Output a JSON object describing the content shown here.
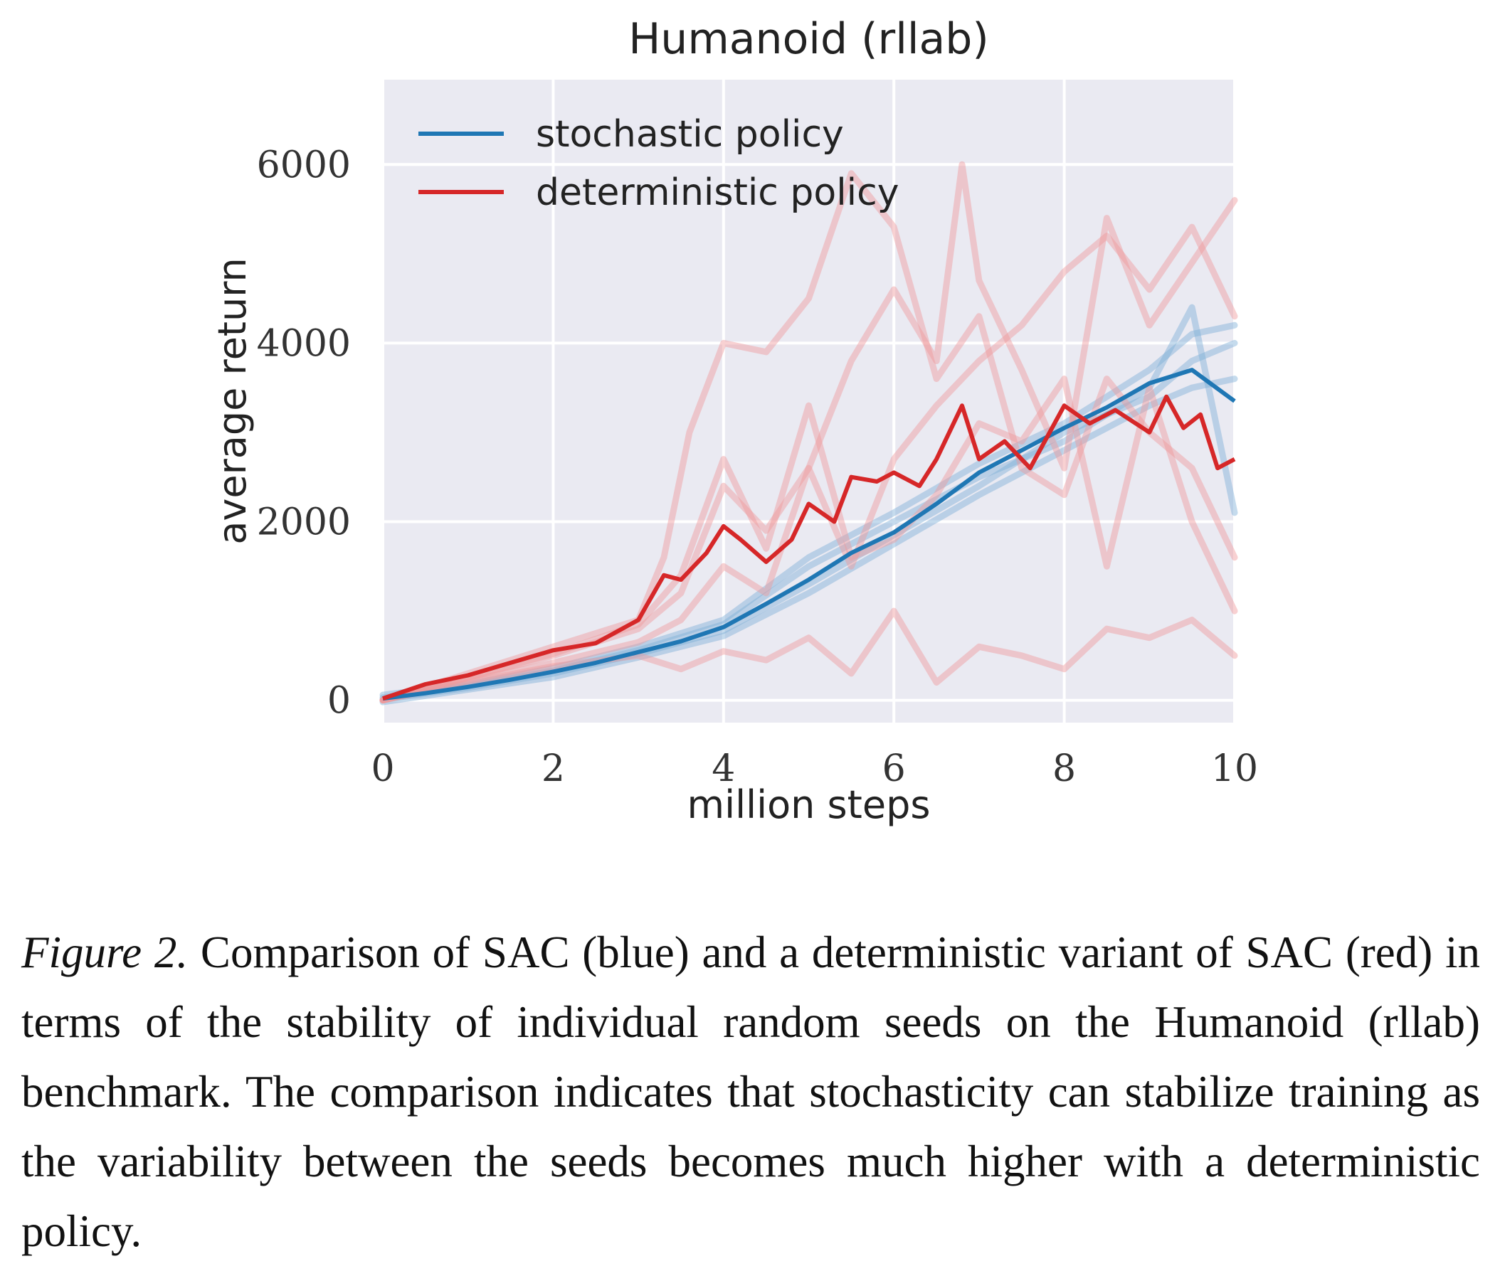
{
  "chart_data": {
    "type": "line",
    "title": "Humanoid (rllab)",
    "xlabel": "million steps",
    "ylabel": "average return",
    "xlim": [
      0,
      10
    ],
    "ylim": [
      -250,
      6950
    ],
    "xticks": [
      0,
      2,
      4,
      6,
      8,
      10
    ],
    "xtick_labels": [
      "0",
      "2",
      "4",
      "6",
      "8",
      "10"
    ],
    "yticks": [
      0,
      2000,
      4000,
      6000
    ],
    "ytick_labels": [
      "0",
      "2000",
      "4000",
      "6000"
    ],
    "grid": true,
    "legend": {
      "location": "top-left",
      "entries": [
        {
          "label": "stochastic policy",
          "color": "#1f77b4"
        },
        {
          "label": "deterministic policy",
          "color": "#d62728"
        }
      ]
    },
    "colors": {
      "background": "#eaeaf2",
      "grid": "#ffffff",
      "stochastic": "#1f77b4",
      "deterministic": "#d62728",
      "stochastic_seed": "#7fb0d8",
      "deterministic_seed": "#ef9a9b"
    },
    "series": [
      {
        "name": "stochastic policy",
        "kind": "mean",
        "color": "#1f77b4",
        "x": [
          0,
          0.5,
          1,
          1.5,
          2,
          2.5,
          3,
          3.5,
          4,
          4.5,
          5,
          5.5,
          6,
          6.5,
          7,
          7.5,
          8,
          8.5,
          9,
          9.5,
          10
        ],
        "y": [
          20,
          80,
          150,
          230,
          320,
          420,
          540,
          660,
          820,
          1080,
          1350,
          1650,
          1880,
          2200,
          2550,
          2800,
          3050,
          3280,
          3550,
          3700,
          3350
        ]
      },
      {
        "name": "deterministic policy",
        "kind": "mean",
        "color": "#d62728",
        "x": [
          0,
          0.5,
          1,
          1.5,
          2,
          2.5,
          3,
          3.3,
          3.5,
          3.8,
          4,
          4.2,
          4.5,
          4.8,
          5,
          5.3,
          5.5,
          5.8,
          6,
          6.3,
          6.5,
          6.8,
          7,
          7.3,
          7.6,
          8,
          8.3,
          8.6,
          9,
          9.2,
          9.4,
          9.6,
          9.8,
          10
        ],
        "y": [
          20,
          180,
          280,
          420,
          560,
          640,
          900,
          1400,
          1350,
          1650,
          1950,
          1800,
          1550,
          1800,
          2200,
          2000,
          2500,
          2450,
          2550,
          2400,
          2700,
          3300,
          2700,
          2900,
          2600,
          3300,
          3100,
          3250,
          3000,
          3400,
          3050,
          3200,
          2600,
          2700
        ]
      },
      {
        "name": "stochastic seed 1",
        "kind": "seed",
        "color": "#7fb0d8",
        "x": [
          0,
          1,
          2,
          3,
          4,
          5,
          6,
          7,
          8,
          9,
          9.5,
          10
        ],
        "y": [
          60,
          180,
          360,
          600,
          900,
          1600,
          2100,
          2650,
          3100,
          3700,
          4100,
          4200
        ]
      },
      {
        "name": "stochastic seed 2",
        "kind": "seed",
        "color": "#7fb0d8",
        "x": [
          0,
          1,
          2,
          3,
          4,
          5,
          6,
          7,
          8,
          9,
          9.5,
          10
        ],
        "y": [
          -20,
          120,
          260,
          480,
          720,
          1200,
          1750,
          2300,
          2800,
          3300,
          3500,
          3600
        ]
      },
      {
        "name": "stochastic seed 3",
        "kind": "seed",
        "color": "#7fb0d8",
        "x": [
          0,
          1,
          2,
          3,
          4,
          5,
          6,
          7,
          8,
          9,
          9.5,
          10
        ],
        "y": [
          30,
          160,
          330,
          560,
          850,
          1500,
          2000,
          2500,
          2900,
          3500,
          4400,
          2100
        ]
      },
      {
        "name": "stochastic seed 4",
        "kind": "seed",
        "color": "#7fb0d8",
        "x": [
          0,
          1,
          2,
          3,
          4,
          5,
          6,
          7,
          8,
          9,
          9.5,
          10
        ],
        "y": [
          10,
          140,
          300,
          520,
          780,
          1300,
          1850,
          2400,
          3000,
          3400,
          3800,
          4000
        ]
      },
      {
        "name": "deterministic seed 1",
        "kind": "seed",
        "color": "#ef9a9b",
        "x": [
          0,
          1,
          2,
          3,
          3.3,
          3.6,
          4,
          4.5,
          5,
          5.5,
          6,
          6.5,
          7,
          7.5,
          8,
          8.5,
          9,
          9.5,
          10
        ],
        "y": [
          0,
          300,
          600,
          900,
          1600,
          3000,
          4000,
          3900,
          4500,
          5900,
          5300,
          3600,
          4300,
          2600,
          2300,
          3600,
          3000,
          2600,
          1600
        ]
      },
      {
        "name": "deterministic seed 2",
        "kind": "seed",
        "color": "#ef9a9b",
        "x": [
          0,
          1,
          2,
          3,
          3.5,
          4,
          4.5,
          5,
          5.5,
          6,
          6.5,
          6.8,
          7,
          7.5,
          8,
          8.5,
          9,
          9.5,
          10
        ],
        "y": [
          0,
          250,
          500,
          800,
          1200,
          2400,
          1900,
          2600,
          3800,
          4600,
          3800,
          6000,
          4700,
          3700,
          2600,
          5400,
          4200,
          4900,
          5600
        ]
      },
      {
        "name": "deterministic seed 3",
        "kind": "seed",
        "color": "#ef9a9b",
        "x": [
          0,
          1,
          2,
          3,
          3.5,
          4,
          4.5,
          5,
          5.5,
          6,
          6.5,
          7,
          7.5,
          8,
          8.5,
          9,
          9.5,
          10
        ],
        "y": [
          0,
          220,
          420,
          650,
          900,
          1500,
          1200,
          2600,
          1500,
          2700,
          3300,
          3800,
          4200,
          4800,
          5200,
          4600,
          5300,
          4300
        ]
      },
      {
        "name": "deterministic seed 4",
        "kind": "seed",
        "color": "#ef9a9b",
        "x": [
          0,
          1,
          2,
          3,
          3.5,
          4,
          4.5,
          5,
          5.5,
          6,
          6.5,
          7,
          7.5,
          8,
          8.5,
          9,
          9.5,
          10
        ],
        "y": [
          0,
          200,
          380,
          500,
          350,
          550,
          450,
          700,
          300,
          1000,
          200,
          600,
          500,
          350,
          800,
          700,
          900,
          500
        ]
      },
      {
        "name": "deterministic seed 5",
        "kind": "seed",
        "color": "#ef9a9b",
        "x": [
          0,
          1,
          2,
          3,
          3.5,
          4,
          4.5,
          5,
          5.5,
          6,
          6.5,
          7,
          7.5,
          8,
          8.5,
          9,
          9.5,
          10
        ],
        "y": [
          0,
          260,
          520,
          850,
          1400,
          2700,
          1700,
          3300,
          1600,
          1800,
          2300,
          3100,
          2900,
          3600,
          1500,
          3500,
          2000,
          1000
        ]
      }
    ]
  },
  "caption": {
    "label": "Figure 2.",
    "text": " Comparison of SAC (blue) and a deterministic variant of SAC (red) in terms of the stability of individual random seeds on the Humanoid (rllab) benchmark. The comparison indicates that stochasticity can stabilize training as the variability between the seeds becomes much higher with a deterministic policy."
  }
}
